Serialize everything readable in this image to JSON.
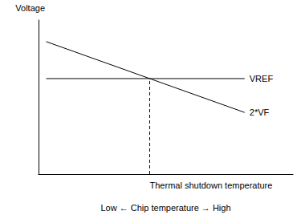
{
  "chart_data": {
    "type": "line",
    "y_label": "Voltage",
    "x_label": "Low ← Chip temperature → High",
    "xlim": [
      0,
      100
    ],
    "xticks": [
      {
        "value": 43.7,
        "label": "Thermal shutdown temperature"
      }
    ],
    "ylim": [
      0,
      100
    ],
    "tick_labels": "x",
    "grid": false,
    "series": [
      {
        "name": "VREF",
        "color": "#000000",
        "x": [
          3,
          81
        ],
        "values": [
          62,
          62
        ],
        "line_style": "solid"
      },
      {
        "name": "2*VF",
        "color": "#000000",
        "x": [
          3,
          81
        ],
        "values": [
          86,
          40
        ],
        "line_style": "solid"
      },
      {
        "color": "#000000",
        "x": [
          43.7,
          43.7
        ],
        "values": [
          0,
          62
        ],
        "line_style": "dashed"
      }
    ]
  }
}
